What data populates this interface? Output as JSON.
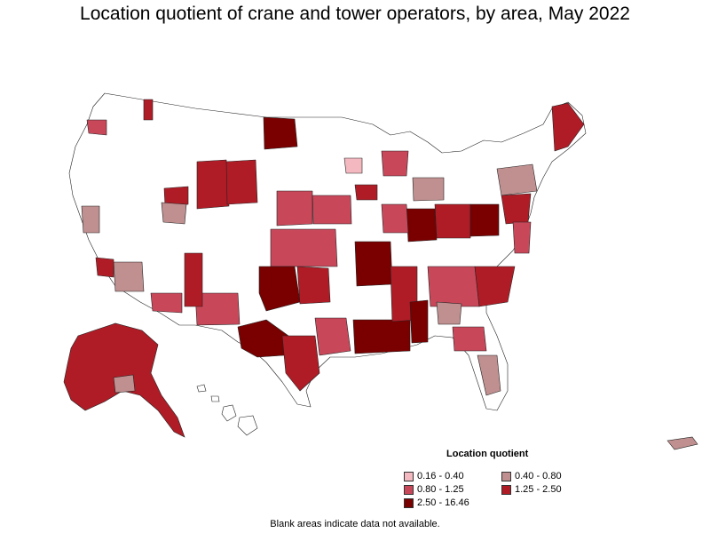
{
  "title": "Location quotient of crane and tower operators, by area, May 2022",
  "legend": {
    "title": "Location quotient",
    "items": [
      {
        "label": "0.16 - 0.40",
        "color": "#f4b8c0"
      },
      {
        "label": "0.40 - 0.80",
        "color": "#c09090"
      },
      {
        "label": "0.80 - 1.25",
        "color": "#c8485a"
      },
      {
        "label": "1.25 - 2.50",
        "color": "#b01c26"
      },
      {
        "label": "2.50 - 16.46",
        "color": "#7a0000"
      }
    ]
  },
  "footnote": "Blank areas indicate data not available."
}
